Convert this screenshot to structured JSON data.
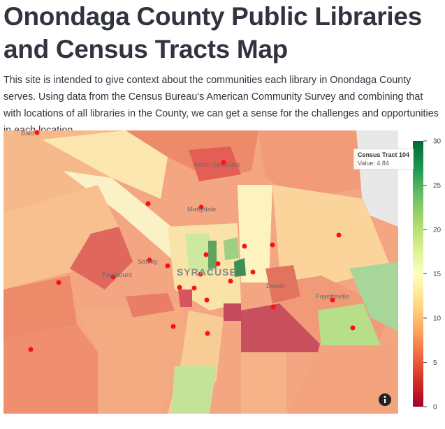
{
  "header": {
    "title": "Onondaga County Public Libraries and Census Tracts Map"
  },
  "intro": "This site is intended to give context about the communities each library in Onondaga County serves. Using data from the Census Bureau's American Community Survey and combining that with locations of all libraries in the County, we can get a sense for the challenges and opportunities in each location.",
  "map": {
    "places": [
      "Bald",
      "North Syracuse",
      "Mattydale",
      "Solvay",
      "Fairmount",
      "SYRACUSE",
      "Dewitt",
      "Fayetteville"
    ]
  },
  "tooltip": {
    "title": "Census Tract 104",
    "label": "Value:",
    "value": 4.84
  },
  "colorbar": {
    "range": [
      0,
      30
    ],
    "ticks": [
      0,
      5,
      10,
      15,
      20,
      25,
      30
    ]
  }
}
